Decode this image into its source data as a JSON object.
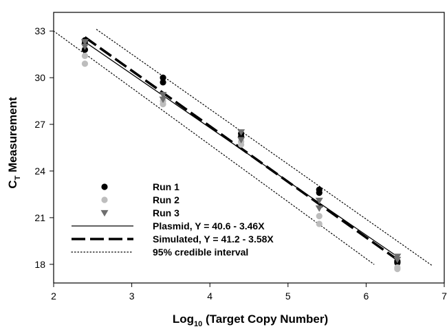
{
  "chart_data": {
    "type": "scatter",
    "xlabel": {
      "main": "Log",
      "sub": "10",
      "rest": " (Target Copy Number)"
    },
    "ylabel": {
      "main": "C",
      "sub": "T",
      "rest": " Measurement"
    },
    "xlim": [
      2,
      7
    ],
    "ylim": [
      16.8,
      34.2
    ],
    "xticks": [
      2,
      3,
      4,
      5,
      6,
      7
    ],
    "yticks": [
      18,
      21,
      24,
      27,
      30,
      33
    ],
    "grid": false,
    "legend_position": "bottom-left",
    "series": [
      {
        "name": "Run 1",
        "marker": "circle",
        "color": "#000000",
        "points": [
          [
            2.4,
            32.4
          ],
          [
            2.4,
            32.2
          ],
          [
            2.4,
            31.8
          ],
          [
            3.4,
            30.0
          ],
          [
            3.4,
            29.7
          ],
          [
            4.4,
            26.4
          ],
          [
            4.4,
            26.2
          ],
          [
            5.4,
            22.8
          ],
          [
            5.4,
            22.6
          ],
          [
            6.4,
            18.2
          ],
          [
            6.4,
            18.1
          ]
        ]
      },
      {
        "name": "Run 2",
        "marker": "circle",
        "color": "#bdbdbd",
        "points": [
          [
            2.4,
            31.4
          ],
          [
            2.4,
            30.9
          ],
          [
            3.4,
            28.5
          ],
          [
            3.4,
            28.3
          ],
          [
            4.4,
            25.9
          ],
          [
            4.4,
            25.7
          ],
          [
            5.4,
            21.1
          ],
          [
            5.4,
            20.6
          ],
          [
            6.4,
            17.8
          ],
          [
            6.4,
            17.7
          ]
        ]
      },
      {
        "name": "Run 3",
        "marker": "triangle-down",
        "color": "#6e6e6e",
        "points": [
          [
            2.4,
            32.3
          ],
          [
            2.4,
            32.0
          ],
          [
            3.4,
            28.9
          ],
          [
            3.4,
            28.6
          ],
          [
            4.4,
            26.5
          ],
          [
            4.4,
            26.0
          ],
          [
            5.4,
            22.1
          ],
          [
            5.4,
            21.6
          ],
          [
            6.4,
            18.5
          ],
          [
            6.4,
            18.3
          ]
        ]
      },
      {
        "name": "Plasmid, Y = 40.6 - 3.46X",
        "type": "line",
        "style": "solid",
        "color": "#000000",
        "x": [
          2.4,
          6.4
        ],
        "y": [
          32.3,
          18.5
        ]
      },
      {
        "name": "Simulated, Y = 41.2 - 3.58X",
        "type": "line",
        "style": "dashed",
        "color": "#000000",
        "x": [
          2.4,
          6.4
        ],
        "y": [
          32.6,
          18.3
        ]
      },
      {
        "name": "95% credible interval",
        "type": "line",
        "style": "dotted",
        "color": "#000000",
        "bands": [
          {
            "x": [
              2.55,
              6.85
            ],
            "y": [
              33.1,
              17.9
            ]
          },
          {
            "x": [
              2.0,
              6.1
            ],
            "y": [
              33.0,
              18.0
            ]
          }
        ]
      }
    ]
  }
}
